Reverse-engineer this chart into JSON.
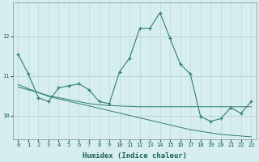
{
  "xlabel": "Humidex (Indice chaleur)",
  "x": [
    0,
    1,
    2,
    3,
    4,
    5,
    6,
    7,
    8,
    9,
    10,
    11,
    12,
    13,
    14,
    15,
    16,
    17,
    18,
    19,
    20,
    21,
    22,
    23
  ],
  "y_main": [
    11.55,
    11.05,
    10.45,
    10.35,
    10.7,
    10.75,
    10.8,
    10.65,
    10.35,
    10.3,
    11.1,
    11.45,
    12.2,
    12.2,
    12.6,
    11.95,
    11.3,
    11.05,
    9.98,
    9.85,
    9.92,
    10.2,
    10.05,
    10.35
  ],
  "y_line1": [
    10.72,
    10.65,
    10.58,
    10.5,
    10.45,
    10.4,
    10.35,
    10.3,
    10.27,
    10.25,
    10.24,
    10.23,
    10.22,
    10.22,
    10.22,
    10.22,
    10.22,
    10.22,
    10.22,
    10.22,
    10.22,
    10.22,
    10.22,
    10.22
  ],
  "y_line2": [
    10.78,
    10.68,
    10.58,
    10.48,
    10.42,
    10.36,
    10.3,
    10.24,
    10.18,
    10.12,
    10.06,
    10.0,
    9.94,
    9.88,
    9.82,
    9.76,
    9.7,
    9.64,
    9.6,
    9.56,
    9.52,
    9.5,
    9.48,
    9.46
  ],
  "line_color": "#2e7d6e",
  "bg_color": "#d6eeee",
  "grid_color": "#c0dada",
  "ylim": [
    9.4,
    12.85
  ],
  "yticks": [
    10,
    11,
    12
  ],
  "xlim": [
    -0.5,
    23.5
  ],
  "figsize": [
    3.2,
    2.0
  ],
  "dpi": 100
}
